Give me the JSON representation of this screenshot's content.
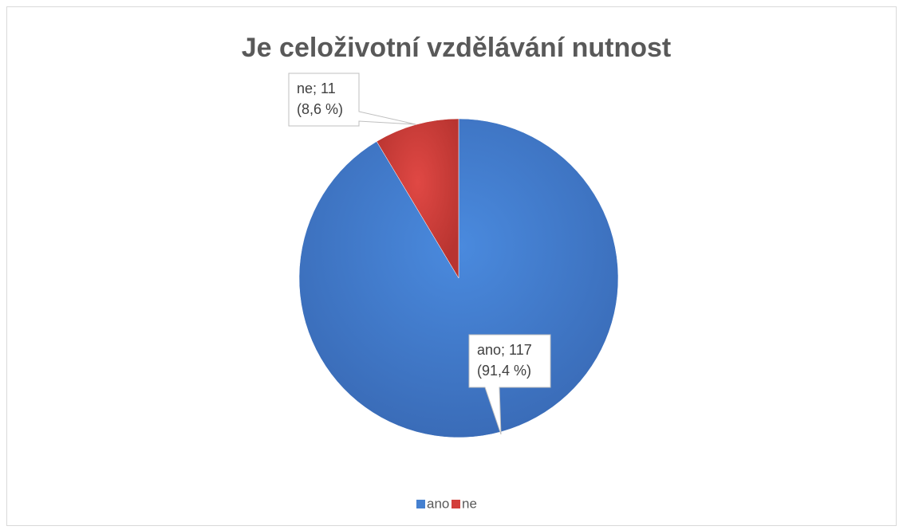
{
  "chart_data": {
    "type": "pie",
    "title": "Je celoživotní vzdělávání nutnost",
    "categories": [
      "ano",
      "ne"
    ],
    "values": [
      117,
      11
    ],
    "value_labels": [
      [
        "ano; 117",
        "(91,4 %)"
      ],
      [
        "ne; 11",
        "(8,6 %)"
      ]
    ],
    "colors": [
      "#4580d0",
      "#d33f3b"
    ],
    "legend": "bottom"
  }
}
